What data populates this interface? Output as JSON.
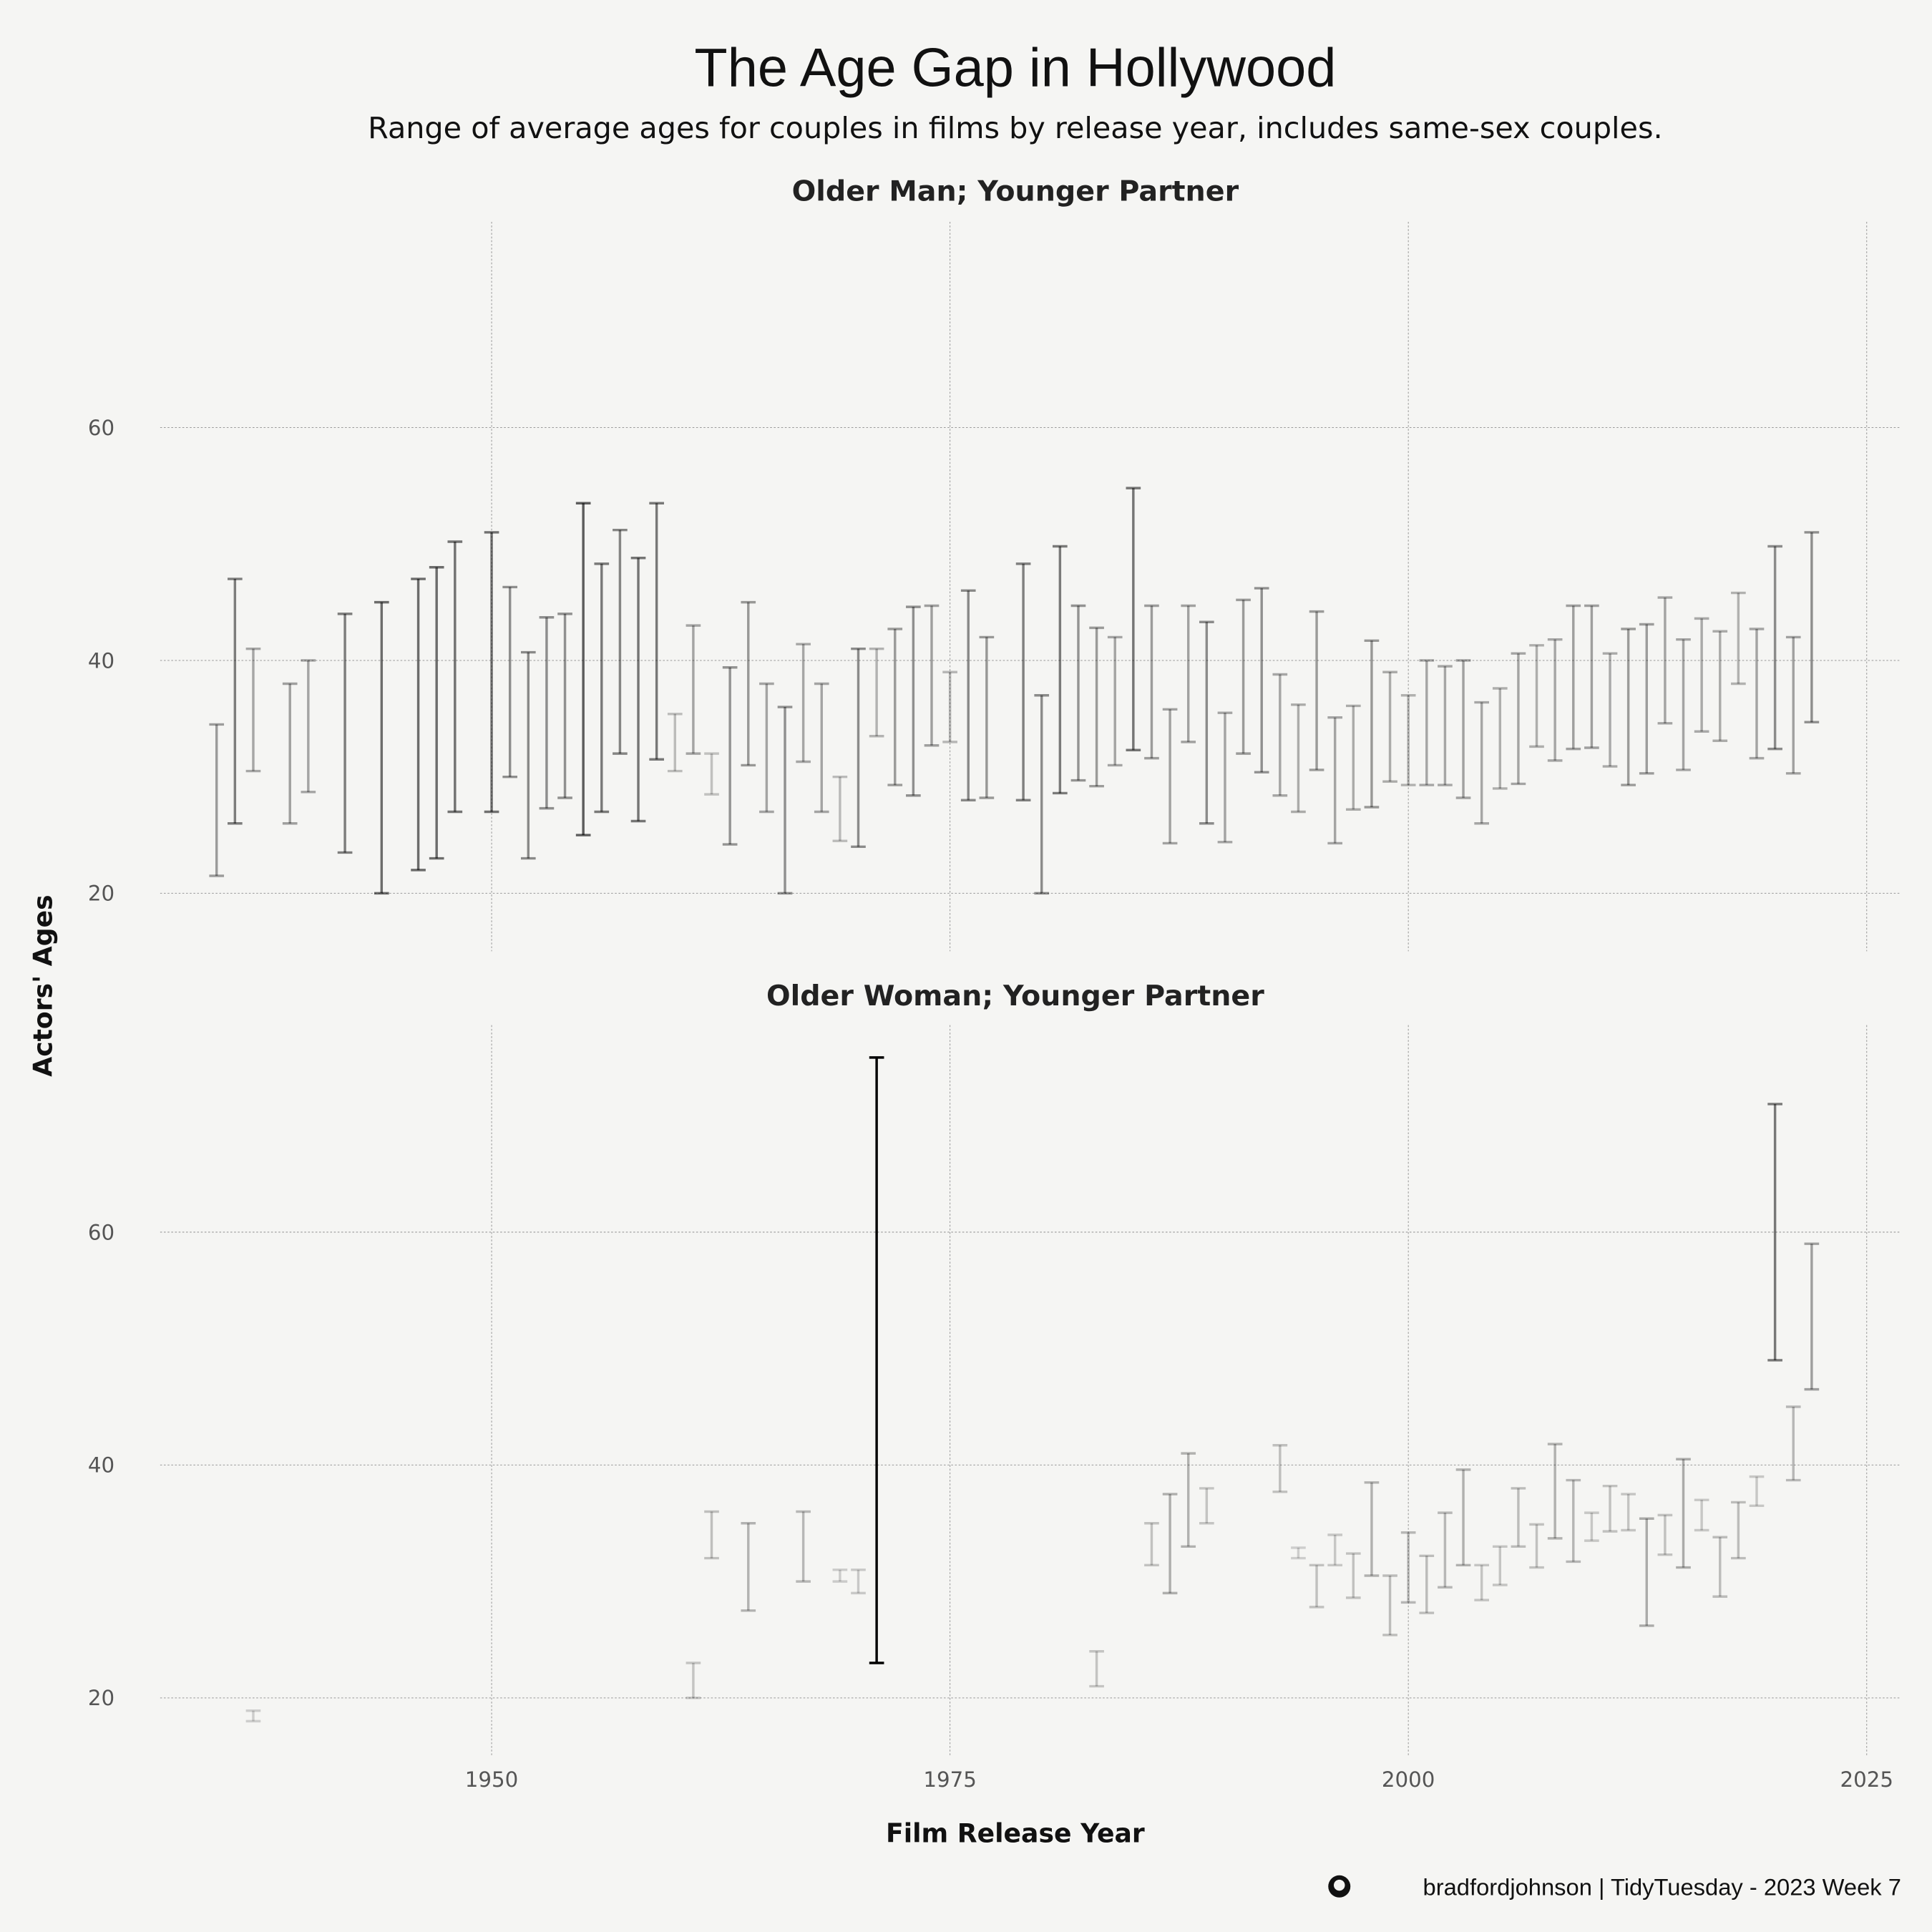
{
  "chart_data": {
    "type": "errorbar",
    "title": "The Age Gap in Hollywood",
    "subtitle": "Range of average ages for couples in films by release year, includes same-sex couples.",
    "xlabel": "Film Release Year",
    "ylabel": "Actors' Ages",
    "xlim": [
      1928,
      2027
    ],
    "x_ticks": [
      "1950",
      "1975",
      "2000",
      "2025"
    ],
    "y_ticks": [
      "20",
      "40",
      "60"
    ],
    "grid": true,
    "caption": "bradfordjohnson | TidyTuesday - 2023 Week 7",
    "panels": [
      {
        "label": "Older Man; Younger Partner",
        "ylim": [
          15,
          78
        ],
        "bars": [
          [
            1935,
            21.5,
            34.5
          ],
          [
            1936,
            26,
            47
          ],
          [
            1937,
            30.5,
            41
          ],
          [
            1939,
            26,
            38
          ],
          [
            1940,
            28.7,
            40
          ],
          [
            1942,
            23.5,
            44
          ],
          [
            1944,
            20,
            45
          ],
          [
            1946,
            22,
            47
          ],
          [
            1947,
            23,
            48
          ],
          [
            1948,
            27,
            50.2
          ],
          [
            1950,
            27,
            51
          ],
          [
            1951,
            30,
            46.3
          ],
          [
            1952,
            23,
            40.7
          ],
          [
            1953,
            27.3,
            43.7
          ],
          [
            1954,
            28.2,
            44
          ],
          [
            1955,
            25,
            53.5
          ],
          [
            1956,
            27,
            48.3
          ],
          [
            1957,
            32,
            51.2
          ],
          [
            1958,
            26.2,
            48.8
          ],
          [
            1959,
            31.5,
            53.5
          ],
          [
            1960,
            30.5,
            35.4
          ],
          [
            1961,
            32,
            43
          ],
          [
            1962,
            28.5,
            32
          ],
          [
            1963,
            24.2,
            39.4
          ],
          [
            1964,
            31,
            45
          ],
          [
            1965,
            27,
            38
          ],
          [
            1966,
            20,
            36
          ],
          [
            1967,
            31.3,
            41.4
          ],
          [
            1968,
            27,
            38
          ],
          [
            1969,
            24.5,
            30
          ],
          [
            1970,
            24,
            41
          ],
          [
            1971,
            33.5,
            41
          ],
          [
            1972,
            29.3,
            42.7
          ],
          [
            1973,
            28.4,
            44.6
          ],
          [
            1974,
            32.7,
            44.7
          ],
          [
            1975,
            33,
            39
          ],
          [
            1976,
            28,
            46
          ],
          [
            1977,
            28.2,
            42
          ],
          [
            1979,
            28,
            48.3
          ],
          [
            1980,
            20,
            37
          ],
          [
            1981,
            28.6,
            49.8
          ],
          [
            1982,
            29.7,
            44.7
          ],
          [
            1983,
            29.2,
            42.8
          ],
          [
            1984,
            31,
            42
          ],
          [
            1985,
            32.3,
            54.8
          ],
          [
            1986,
            31.6,
            44.7
          ],
          [
            1987,
            24.3,
            35.8
          ],
          [
            1988,
            33,
            44.7
          ],
          [
            1989,
            26,
            43.3
          ],
          [
            1990,
            24.4,
            35.5
          ],
          [
            1991,
            32,
            45.2
          ],
          [
            1992,
            30.4,
            46.2
          ],
          [
            1993,
            28.4,
            38.8
          ],
          [
            1994,
            27,
            36.2
          ],
          [
            1995,
            30.6,
            44.2
          ],
          [
            1996,
            24.3,
            35.1
          ],
          [
            1997,
            27.2,
            36.1
          ],
          [
            1998,
            27.4,
            41.7
          ],
          [
            1999,
            29.6,
            39
          ],
          [
            2000,
            29.3,
            37
          ],
          [
            2001,
            29.3,
            40
          ],
          [
            2002,
            29.3,
            39.5
          ],
          [
            2003,
            28.2,
            40
          ],
          [
            2004,
            26,
            36.4
          ],
          [
            2005,
            29,
            37.6
          ],
          [
            2006,
            29.4,
            40.6
          ],
          [
            2007,
            32.6,
            41.3
          ],
          [
            2008,
            31.4,
            41.8
          ],
          [
            2009,
            32.4,
            44.7
          ],
          [
            2010,
            32.5,
            44.7
          ],
          [
            2011,
            30.9,
            40.6
          ],
          [
            2012,
            29.3,
            42.7
          ],
          [
            2013,
            30.3,
            43.1
          ],
          [
            2014,
            34.6,
            45.4
          ],
          [
            2015,
            30.6,
            41.8
          ],
          [
            2016,
            33.9,
            43.6
          ],
          [
            2017,
            33.1,
            42.5
          ],
          [
            2018,
            38,
            45.8
          ],
          [
            2019,
            31.6,
            42.7
          ],
          [
            2020,
            32.4,
            49.8
          ],
          [
            2021,
            30.3,
            42
          ],
          [
            2022,
            34.7,
            51
          ]
        ]
      },
      {
        "label": "Older Woman; Younger Partner",
        "ylim": [
          15,
          78
        ],
        "bars": [
          [
            1937,
            18,
            18.9
          ],
          [
            1961,
            20,
            23
          ],
          [
            1962,
            32,
            36
          ],
          [
            1964,
            27.5,
            35
          ],
          [
            1967,
            30,
            36
          ],
          [
            1969,
            30,
            31
          ],
          [
            1970,
            29,
            31
          ],
          [
            1971,
            23,
            75
          ],
          [
            1983,
            21,
            24
          ],
          [
            1986,
            31.4,
            35
          ],
          [
            1987,
            29,
            37.5
          ],
          [
            1988,
            33,
            41
          ],
          [
            1989,
            35,
            38
          ],
          [
            1993,
            37.7,
            41.7
          ],
          [
            1994,
            32,
            32.9
          ],
          [
            1995,
            27.8,
            31.4
          ],
          [
            1996,
            31.4,
            34
          ],
          [
            1997,
            28.6,
            32.4
          ],
          [
            1998,
            30.5,
            38.5
          ],
          [
            1999,
            25.4,
            30.5
          ],
          [
            2000,
            28.2,
            34.2
          ],
          [
            2001,
            27.3,
            32.2
          ],
          [
            2002,
            29.5,
            35.9
          ],
          [
            2003,
            31.4,
            39.6
          ],
          [
            2004,
            28.4,
            31.4
          ],
          [
            2005,
            29.7,
            33
          ],
          [
            2006,
            33,
            38
          ],
          [
            2007,
            31.2,
            34.9
          ],
          [
            2008,
            33.7,
            41.8
          ],
          [
            2009,
            31.7,
            38.7
          ],
          [
            2010,
            33.5,
            35.9
          ],
          [
            2011,
            34.3,
            38.2
          ],
          [
            2012,
            34.4,
            37.5
          ],
          [
            2013,
            26.2,
            35.4
          ],
          [
            2014,
            32.3,
            35.7
          ],
          [
            2015,
            31.2,
            40.5
          ],
          [
            2016,
            34.4,
            37
          ],
          [
            2017,
            28.7,
            33.8
          ],
          [
            2018,
            32,
            36.8
          ],
          [
            2019,
            36.5,
            39
          ],
          [
            2020,
            49,
            71
          ],
          [
            2021,
            38.7,
            45
          ],
          [
            2022,
            46.5,
            59
          ]
        ]
      }
    ]
  }
}
